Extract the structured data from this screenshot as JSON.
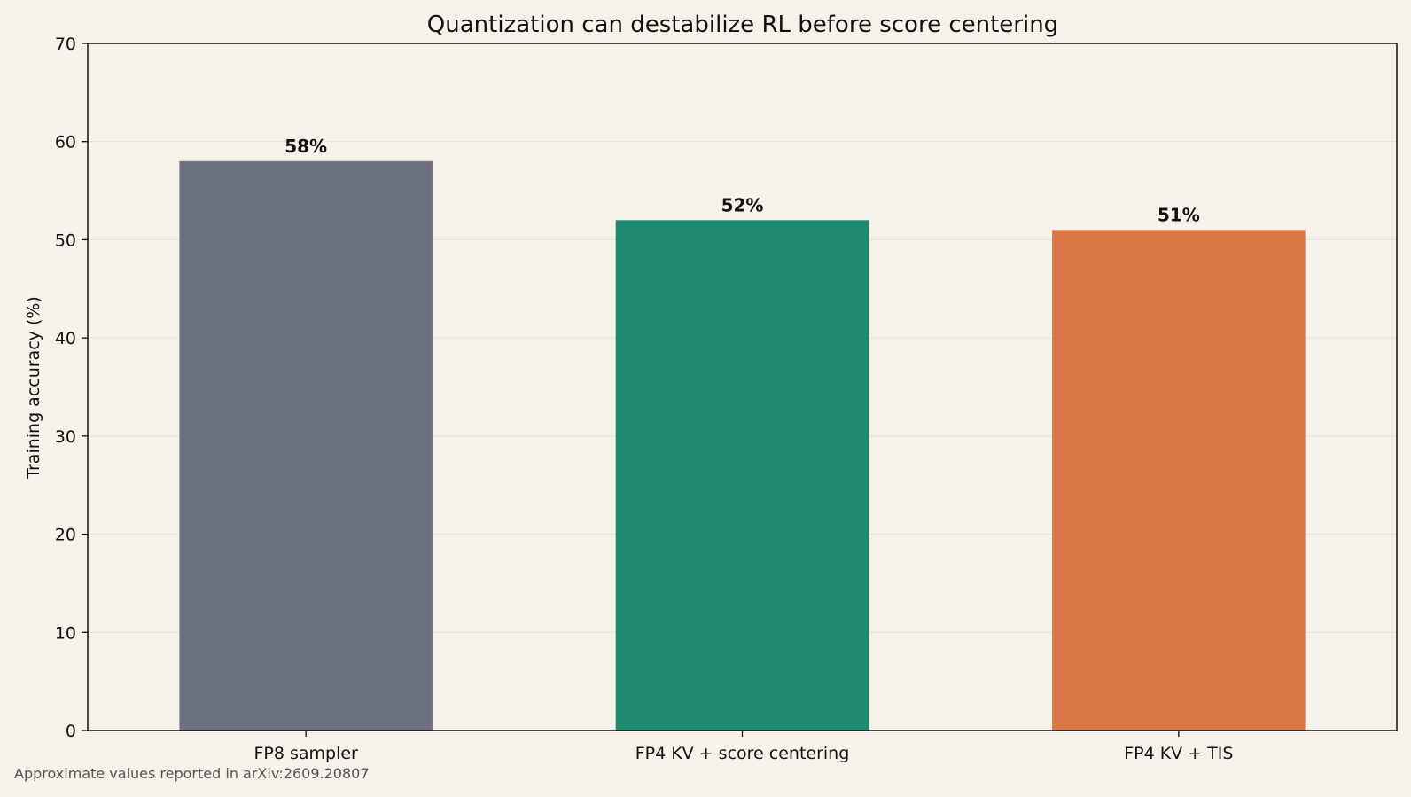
{
  "chart_data": {
    "type": "bar",
    "title": "Quantization can destabilize RL before score centering",
    "xlabel": "",
    "ylabel": "Training accuracy (%)",
    "categories": [
      "FP8 sampler",
      "FP4 KV + score centering",
      "FP4 KV + TIS"
    ],
    "values": [
      58,
      52,
      51
    ],
    "data_labels": [
      "58%",
      "52%",
      "51%"
    ],
    "colors": [
      "#6b7280",
      "#1f8a70",
      "#d97745"
    ],
    "ylim": [
      0,
      70
    ],
    "yticks": [
      0,
      10,
      20,
      30,
      40,
      50,
      60,
      70
    ],
    "grid": "horizontal",
    "legend": "none"
  },
  "footnote": "Approximate values reported in arXiv:2609.20807"
}
